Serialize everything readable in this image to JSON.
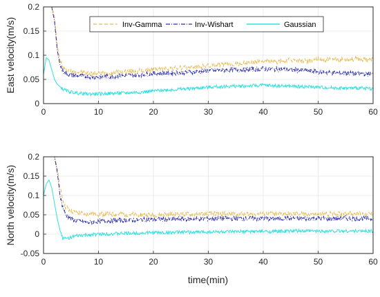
{
  "colors": {
    "inv_gamma": "#E8B84A",
    "inv_wishart": "#2B2BB0",
    "gaussian": "#2FE0E0",
    "axes": "#262626",
    "grid": "#e6e6e6"
  },
  "chart_data": [
    {
      "type": "line",
      "xlabel": "",
      "ylabel": "East velocity(m/s)",
      "xlim": [
        0,
        60
      ],
      "ylim": [
        0,
        0.2
      ],
      "xticks": [
        0,
        10,
        20,
        30,
        40,
        50,
        60
      ],
      "yticks": [
        0,
        0.05,
        0.1,
        0.15,
        0.2
      ],
      "xtick_labels": [
        "0",
        "10",
        "20",
        "30",
        "40",
        "50",
        "60"
      ],
      "ytick_labels": [
        "0",
        "0.05",
        "0.1",
        "0.15",
        "0.2"
      ],
      "legend": {
        "position": "top-center",
        "orientation": "horizontal",
        "items": [
          "Inv-Gamma",
          "Inv-Wishart",
          "Gaussian"
        ]
      },
      "series": [
        {
          "name": "Inv-Gamma",
          "style": "dashed",
          "color_key": "inv_gamma",
          "x": [
            0,
            0.5,
            1,
            1.5,
            2,
            2.5,
            3,
            3.5,
            4,
            5,
            6,
            8,
            10,
            12,
            15,
            18,
            20,
            22,
            25,
            28,
            30,
            32,
            35,
            38,
            40,
            42,
            45,
            48,
            50,
            52,
            55,
            58,
            60
          ],
          "y": [
            0.2,
            0.2,
            0.2,
            0.2,
            0.18,
            0.12,
            0.09,
            0.075,
            0.07,
            0.068,
            0.066,
            0.063,
            0.062,
            0.064,
            0.066,
            0.068,
            0.07,
            0.072,
            0.074,
            0.076,
            0.078,
            0.08,
            0.082,
            0.085,
            0.088,
            0.086,
            0.09,
            0.088,
            0.092,
            0.09,
            0.093,
            0.091,
            0.092
          ]
        },
        {
          "name": "Inv-Wishart",
          "style": "dashdot",
          "color_key": "inv_wishart",
          "x": [
            0,
            0.5,
            1,
            1.5,
            2,
            2.5,
            3,
            3.5,
            4,
            5,
            6,
            8,
            10,
            12,
            15,
            18,
            20,
            22,
            25,
            28,
            30,
            32,
            35,
            38,
            40,
            42,
            45,
            48,
            50,
            52,
            55,
            58,
            60
          ],
          "y": [
            0.2,
            0.2,
            0.2,
            0.2,
            0.17,
            0.11,
            0.08,
            0.068,
            0.062,
            0.06,
            0.058,
            0.056,
            0.055,
            0.056,
            0.058,
            0.06,
            0.062,
            0.063,
            0.064,
            0.066,
            0.068,
            0.069,
            0.07,
            0.071,
            0.072,
            0.071,
            0.07,
            0.068,
            0.066,
            0.064,
            0.063,
            0.062,
            0.061
          ]
        },
        {
          "name": "Gaussian",
          "style": "solid",
          "color_key": "gaussian",
          "x": [
            0,
            0.5,
            1,
            1.5,
            2,
            2.5,
            3,
            3.5,
            4,
            5,
            6,
            8,
            10,
            12,
            15,
            18,
            20,
            22,
            25,
            28,
            30,
            32,
            35,
            38,
            40,
            42,
            45,
            48,
            50,
            52,
            55,
            58,
            60
          ],
          "y": [
            0.06,
            0.095,
            0.09,
            0.07,
            0.05,
            0.04,
            0.035,
            0.03,
            0.027,
            0.024,
            0.022,
            0.02,
            0.02,
            0.021,
            0.022,
            0.024,
            0.026,
            0.028,
            0.03,
            0.032,
            0.034,
            0.035,
            0.036,
            0.037,
            0.038,
            0.037,
            0.036,
            0.035,
            0.034,
            0.033,
            0.032,
            0.032,
            0.031
          ]
        }
      ]
    },
    {
      "type": "line",
      "xlabel": "time(min)",
      "ylabel": "North velocity(m/s)",
      "xlim": [
        0,
        60
      ],
      "ylim": [
        -0.05,
        0.2
      ],
      "xticks": [
        0,
        10,
        20,
        30,
        40,
        50,
        60
      ],
      "yticks": [
        -0.05,
        0,
        0.05,
        0.1,
        0.15,
        0.2
      ],
      "xtick_labels": [
        "0",
        "10",
        "20",
        "30",
        "40",
        "50",
        "60"
      ],
      "ytick_labels": [
        "-0.05",
        "0",
        "0.05",
        "0.1",
        "0.15",
        "0.2"
      ],
      "series": [
        {
          "name": "Inv-Gamma",
          "style": "dashed",
          "color_key": "inv_gamma",
          "x": [
            0,
            0.5,
            1,
            1.5,
            2,
            2.5,
            3,
            3.5,
            4,
            5,
            6,
            8,
            10,
            12,
            15,
            18,
            20,
            22,
            25,
            28,
            30,
            32,
            35,
            38,
            40,
            42,
            45,
            48,
            50,
            52,
            55,
            58,
            60
          ],
          "y": [
            0.2,
            0.2,
            0.2,
            0.2,
            0.2,
            0.17,
            0.12,
            0.09,
            0.07,
            0.06,
            0.055,
            0.052,
            0.052,
            0.052,
            0.051,
            0.05,
            0.05,
            0.051,
            0.051,
            0.052,
            0.052,
            0.053,
            0.052,
            0.052,
            0.053,
            0.052,
            0.052,
            0.053,
            0.052,
            0.052,
            0.053,
            0.053,
            0.052
          ]
        },
        {
          "name": "Inv-Wishart",
          "style": "dashdot",
          "color_key": "inv_wishart",
          "x": [
            0,
            0.5,
            1,
            1.5,
            2,
            2.5,
            3,
            3.5,
            4,
            5,
            6,
            8,
            10,
            12,
            15,
            18,
            20,
            22,
            25,
            28,
            30,
            32,
            35,
            38,
            40,
            42,
            45,
            48,
            50,
            52,
            55,
            58,
            60
          ],
          "y": [
            0.2,
            0.2,
            0.2,
            0.2,
            0.2,
            0.16,
            0.1,
            0.07,
            0.05,
            0.04,
            0.035,
            0.03,
            0.033,
            0.035,
            0.036,
            0.037,
            0.038,
            0.038,
            0.039,
            0.04,
            0.04,
            0.04,
            0.041,
            0.04,
            0.041,
            0.04,
            0.041,
            0.04,
            0.041,
            0.04,
            0.041,
            0.04,
            0.04
          ]
        },
        {
          "name": "Gaussian",
          "style": "solid",
          "color_key": "gaussian",
          "x": [
            0,
            0.5,
            1,
            1.5,
            2,
            2.5,
            3,
            3.5,
            4,
            5,
            6,
            8,
            10,
            12,
            15,
            18,
            20,
            22,
            25,
            28,
            30,
            32,
            35,
            38,
            40,
            42,
            45,
            48,
            50,
            52,
            55,
            58,
            60
          ],
          "y": [
            0.1,
            0.13,
            0.14,
            0.12,
            0.08,
            0.04,
            0.01,
            -0.01,
            -0.012,
            -0.008,
            -0.005,
            -0.002,
            0.0,
            0.001,
            0.002,
            0.003,
            0.004,
            0.004,
            0.005,
            0.005,
            0.006,
            0.006,
            0.006,
            0.007,
            0.007,
            0.007,
            0.008,
            0.008,
            0.008,
            0.008,
            0.008,
            0.008,
            0.008
          ]
        }
      ]
    }
  ]
}
